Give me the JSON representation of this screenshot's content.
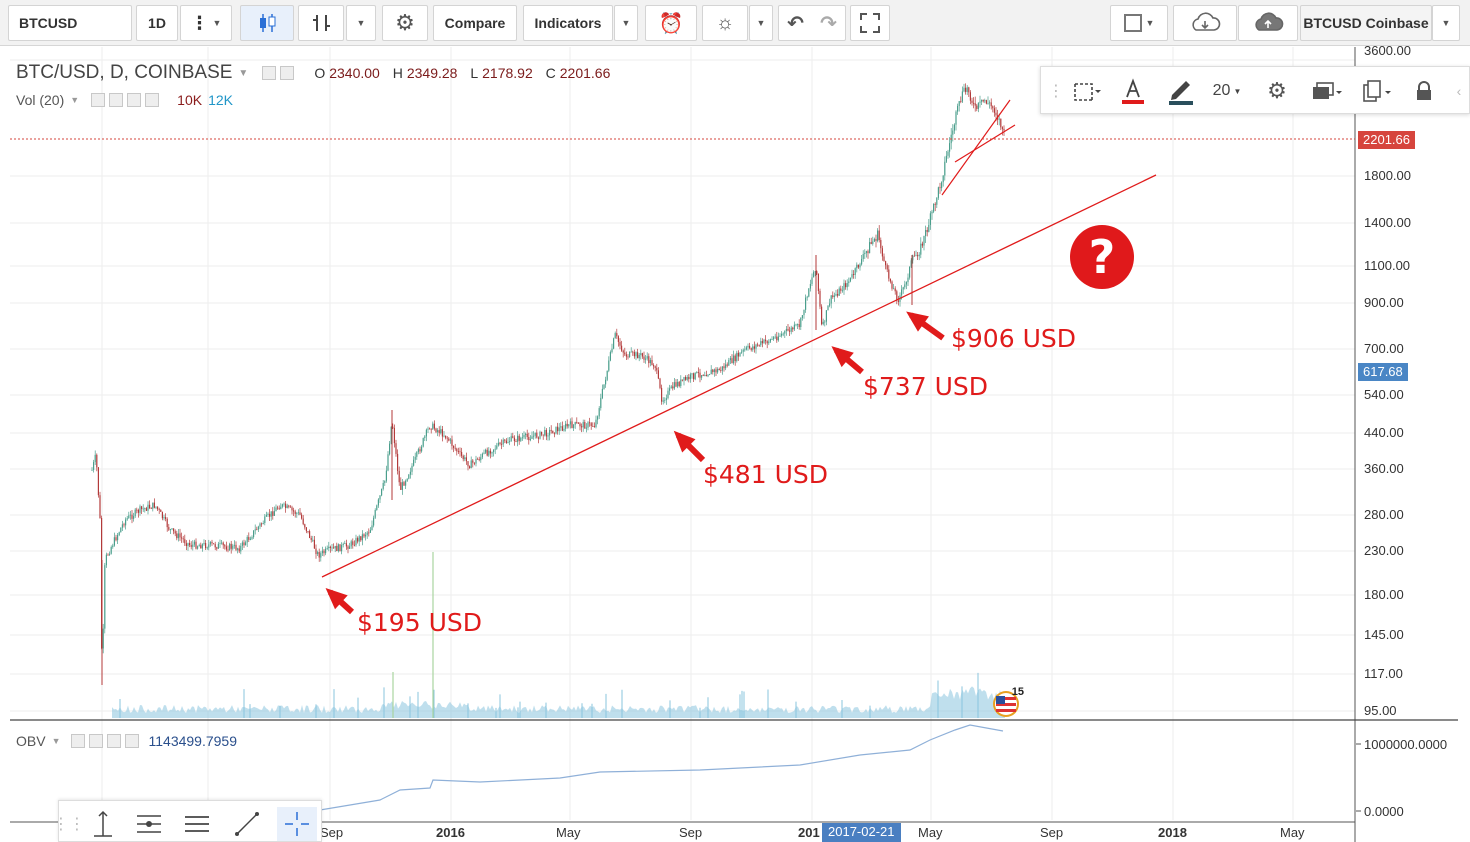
{
  "toolbar": {
    "symbol": "BTCUSD",
    "interval": "1D",
    "compare_label": "Compare",
    "indicators_label": "Indicators",
    "feed_label": "BTCUSD Coinbase"
  },
  "legend": {
    "title": "BTC/USD, D, COINBASE",
    "open_key": "O",
    "open": "2340.00",
    "high_key": "H",
    "high": "2349.28",
    "low_key": "L",
    "low": "2178.92",
    "close_key": "C",
    "close": "2201.66",
    "volume_label": "Vol (20)",
    "volume_val_1": "10K",
    "volume_val_2": "12K",
    "obv_label": "OBV",
    "obv_value": "1143499.7959"
  },
  "draw_toolbar": {
    "size": "20"
  },
  "price_scale": {
    "top_label": "3600.00",
    "labels": [
      "1800.00",
      "1400.00",
      "1100.00",
      "900.00",
      "700.00",
      "540.00",
      "440.00",
      "360.00",
      "280.00",
      "230.00",
      "180.00",
      "145.00",
      "117.00",
      "95.00"
    ],
    "current_price": "2201.66",
    "crosshair_price": "617.68",
    "obv_labels": [
      "1000000.0000",
      "0.0000"
    ]
  },
  "time_axis": {
    "labels": [
      "Sep",
      "2016",
      "May",
      "Sep",
      "201",
      "May",
      "Sep",
      "2018",
      "May"
    ],
    "crosshair_date": "2017-02-21"
  },
  "annotations": {
    "a1": "$195 USD",
    "a2": "$481 USD",
    "a3": "$737 USD",
    "a4": "$906 USD",
    "question": "?",
    "badge_number": "15"
  },
  "colors": {
    "up": "#4a9e8c",
    "down": "#b33a3a",
    "annotation": "#e01b1b",
    "obv_line": "#8fb0d8",
    "volume": "#8ac4de"
  }
}
